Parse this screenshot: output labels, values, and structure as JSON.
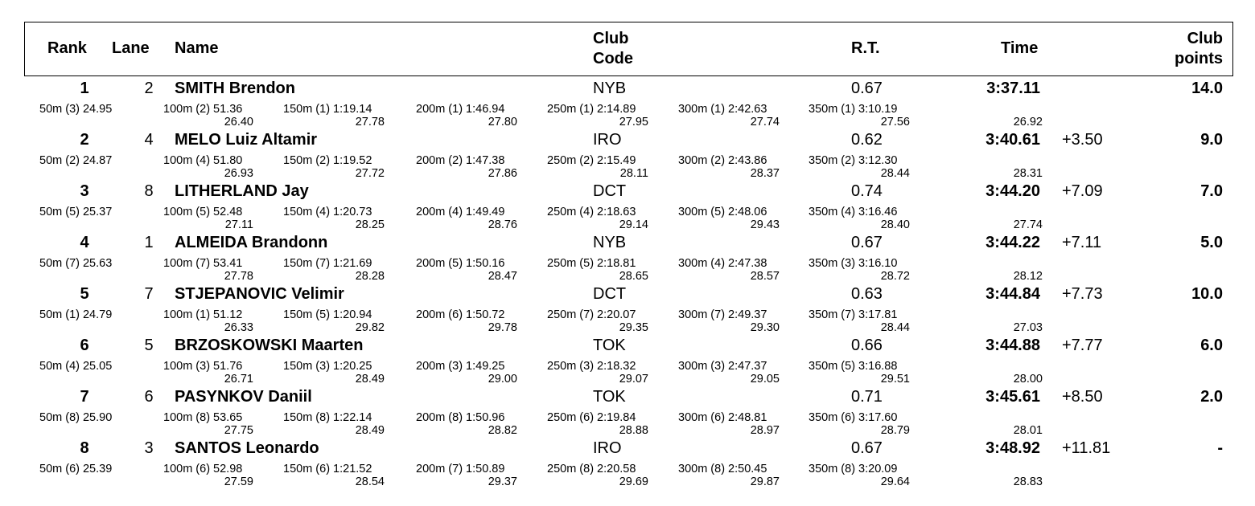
{
  "headers": {
    "rank": "Rank",
    "lane": "Lane",
    "name": "Name",
    "club_l1": "Club",
    "club_l2": "Code",
    "rt": "R.T.",
    "time": "Time",
    "points_l1": "Club",
    "points_l2": "points"
  },
  "swimmers": [
    {
      "rank": "1",
      "lane": "2",
      "name": "SMITH Brendon",
      "club": "NYB",
      "rt": "0.67",
      "time": "3:37.11",
      "behind": "",
      "points": "14.0",
      "splits": [
        {
          "cum": "50m (3) 24.95",
          "inc": ""
        },
        {
          "cum": "100m (2) 51.36",
          "inc": "26.40"
        },
        {
          "cum": "150m (1) 1:19.14",
          "inc": "27.78"
        },
        {
          "cum": "200m (1) 1:46.94",
          "inc": "27.80"
        },
        {
          "cum": "250m (1) 2:14.89",
          "inc": "27.95"
        },
        {
          "cum": "300m (1) 2:42.63",
          "inc": "27.74"
        },
        {
          "cum": "350m (1) 3:10.19",
          "inc": "27.56"
        }
      ],
      "last_split": "26.92"
    },
    {
      "rank": "2",
      "lane": "4",
      "name": "MELO Luiz Altamir",
      "club": "IRO",
      "rt": "0.62",
      "time": "3:40.61",
      "behind": "+3.50",
      "points": "9.0",
      "splits": [
        {
          "cum": "50m (2) 24.87",
          "inc": ""
        },
        {
          "cum": "100m (4) 51.80",
          "inc": "26.93"
        },
        {
          "cum": "150m (2) 1:19.52",
          "inc": "27.72"
        },
        {
          "cum": "200m (2) 1:47.38",
          "inc": "27.86"
        },
        {
          "cum": "250m (2) 2:15.49",
          "inc": "28.11"
        },
        {
          "cum": "300m (2) 2:43.86",
          "inc": "28.37"
        },
        {
          "cum": "350m (2) 3:12.30",
          "inc": "28.44"
        }
      ],
      "last_split": "28.31"
    },
    {
      "rank": "3",
      "lane": "8",
      "name": "LITHERLAND Jay",
      "club": "DCT",
      "rt": "0.74",
      "time": "3:44.20",
      "behind": "+7.09",
      "points": "7.0",
      "splits": [
        {
          "cum": "50m (5) 25.37",
          "inc": ""
        },
        {
          "cum": "100m (5) 52.48",
          "inc": "27.11"
        },
        {
          "cum": "150m (4) 1:20.73",
          "inc": "28.25"
        },
        {
          "cum": "200m (4) 1:49.49",
          "inc": "28.76"
        },
        {
          "cum": "250m (4) 2:18.63",
          "inc": "29.14"
        },
        {
          "cum": "300m (5) 2:48.06",
          "inc": "29.43"
        },
        {
          "cum": "350m (4) 3:16.46",
          "inc": "28.40"
        }
      ],
      "last_split": "27.74"
    },
    {
      "rank": "4",
      "lane": "1",
      "name": "ALMEIDA Brandonn",
      "club": "NYB",
      "rt": "0.67",
      "time": "3:44.22",
      "behind": "+7.11",
      "points": "5.0",
      "splits": [
        {
          "cum": "50m (7) 25.63",
          "inc": ""
        },
        {
          "cum": "100m (7) 53.41",
          "inc": "27.78"
        },
        {
          "cum": "150m (7) 1:21.69",
          "inc": "28.28"
        },
        {
          "cum": "200m (5) 1:50.16",
          "inc": "28.47"
        },
        {
          "cum": "250m (5) 2:18.81",
          "inc": "28.65"
        },
        {
          "cum": "300m (4) 2:47.38",
          "inc": "28.57"
        },
        {
          "cum": "350m (3) 3:16.10",
          "inc": "28.72"
        }
      ],
      "last_split": "28.12"
    },
    {
      "rank": "5",
      "lane": "7",
      "name": "STJEPANOVIC Velimir",
      "club": "DCT",
      "rt": "0.63",
      "time": "3:44.84",
      "behind": "+7.73",
      "points": "10.0",
      "splits": [
        {
          "cum": "50m (1) 24.79",
          "inc": ""
        },
        {
          "cum": "100m (1) 51.12",
          "inc": "26.33"
        },
        {
          "cum": "150m (5) 1:20.94",
          "inc": "29.82"
        },
        {
          "cum": "200m (6) 1:50.72",
          "inc": "29.78"
        },
        {
          "cum": "250m (7) 2:20.07",
          "inc": "29.35"
        },
        {
          "cum": "300m (7) 2:49.37",
          "inc": "29.30"
        },
        {
          "cum": "350m (7) 3:17.81",
          "inc": "28.44"
        }
      ],
      "last_split": "27.03"
    },
    {
      "rank": "6",
      "lane": "5",
      "name": "BRZOSKOWSKI Maarten",
      "club": "TOK",
      "rt": "0.66",
      "time": "3:44.88",
      "behind": "+7.77",
      "points": "6.0",
      "splits": [
        {
          "cum": "50m (4) 25.05",
          "inc": ""
        },
        {
          "cum": "100m (3) 51.76",
          "inc": "26.71"
        },
        {
          "cum": "150m (3) 1:20.25",
          "inc": "28.49"
        },
        {
          "cum": "200m (3) 1:49.25",
          "inc": "29.00"
        },
        {
          "cum": "250m (3) 2:18.32",
          "inc": "29.07"
        },
        {
          "cum": "300m (3) 2:47.37",
          "inc": "29.05"
        },
        {
          "cum": "350m (5) 3:16.88",
          "inc": "29.51"
        }
      ],
      "last_split": "28.00"
    },
    {
      "rank": "7",
      "lane": "6",
      "name": "PASYNKOV Daniil",
      "club": "TOK",
      "rt": "0.71",
      "time": "3:45.61",
      "behind": "+8.50",
      "points": "2.0",
      "splits": [
        {
          "cum": "50m (8) 25.90",
          "inc": ""
        },
        {
          "cum": "100m (8) 53.65",
          "inc": "27.75"
        },
        {
          "cum": "150m (8) 1:22.14",
          "inc": "28.49"
        },
        {
          "cum": "200m (8) 1:50.96",
          "inc": "28.82"
        },
        {
          "cum": "250m (6) 2:19.84",
          "inc": "28.88"
        },
        {
          "cum": "300m (6) 2:48.81",
          "inc": "28.97"
        },
        {
          "cum": "350m (6) 3:17.60",
          "inc": "28.79"
        }
      ],
      "last_split": "28.01"
    },
    {
      "rank": "8",
      "lane": "3",
      "name": "SANTOS Leonardo",
      "club": "IRO",
      "rt": "0.67",
      "time": "3:48.92",
      "behind": "+11.81",
      "points": "-",
      "splits": [
        {
          "cum": "50m (6) 25.39",
          "inc": ""
        },
        {
          "cum": "100m (6) 52.98",
          "inc": "27.59"
        },
        {
          "cum": "150m (6) 1:21.52",
          "inc": "28.54"
        },
        {
          "cum": "200m (7) 1:50.89",
          "inc": "29.37"
        },
        {
          "cum": "250m (8) 2:20.58",
          "inc": "29.69"
        },
        {
          "cum": "300m (8) 2:50.45",
          "inc": "29.87"
        },
        {
          "cum": "350m (8) 3:20.09",
          "inc": "29.64"
        }
      ],
      "last_split": "28.83"
    }
  ]
}
